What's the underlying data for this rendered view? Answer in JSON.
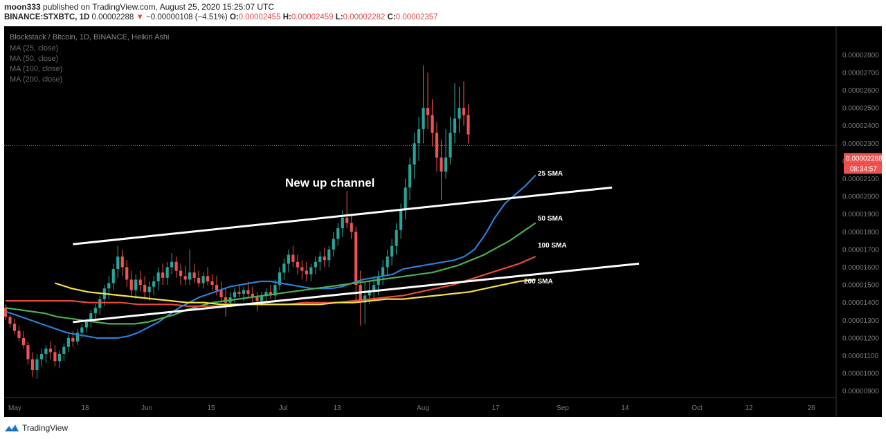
{
  "header": {
    "author": "moon333",
    "published_text": "published on TradingView.com, August 25, 2020 15:25:07 UTC",
    "symbol": "BINANCE:STXBTC, 1D",
    "last": "0.00002288",
    "change_arrow": "▼",
    "change": "−0.00000108 (−4.51%)",
    "o_label": "O:",
    "o_value": "0.00002455",
    "h_label": "H:",
    "h_value": "0.00002459",
    "l_label": "L:",
    "l_value": "0.00002282",
    "c_label": "C:",
    "c_value": "0.00002357"
  },
  "legend": {
    "title": "Blockstack / Bitcoin, 1D, BINANCE, Heikin Ashi",
    "ma": [
      "MA (25, close)",
      "MA (50, close)",
      "MA (100, close)",
      "MA (200, close)"
    ]
  },
  "annotations": {
    "channel": "New up channel",
    "sma25": "25 SMA",
    "sma50": "50 SMA",
    "sma100": "100 SMA",
    "sma200": "200 SMA"
  },
  "price_scale": {
    "last_price": "0.00002288",
    "countdown": "08:34:57"
  },
  "footer": {
    "brand": "TradingView"
  },
  "colors": {
    "background": "#000000",
    "up": "#26a69a",
    "down": "#ef5350",
    "sma25": "#2d7fd6",
    "sma50": "#4caf50",
    "sma100": "#e84a3a",
    "sma200": "#f4e242",
    "trendline": "#ffffff"
  },
  "chart_data": {
    "type": "candlestick",
    "title": "Blockstack / Bitcoin, 1D, BINANCE, Heikin Ashi",
    "y_tick_labels": [
      "0.00000900",
      "0.00001000",
      "0.00001100",
      "0.00001200",
      "0.00001300",
      "0.00001400",
      "0.00001500",
      "0.00001600",
      "0.00001700",
      "0.00001800",
      "0.00001900",
      "0.00002000",
      "0.00002100",
      "0.00002200",
      "0.00002300",
      "0.00002400",
      "0.00002500",
      "0.00002600",
      "0.00002700",
      "0.00002800"
    ],
    "x_tick_labels": [
      "May",
      "18",
      "Jun",
      "15",
      "Jul",
      "13",
      "Aug",
      "17",
      "Sep",
      "14",
      "Oct",
      "12",
      "26"
    ],
    "ylim": [
      8.5e-06,
      2.89e-05
    ],
    "start_date": "2020-05-04",
    "ohlc_heikin_ashi": [
      [
        1.37e-05,
        1.39e-05,
        1.3e-05,
        1.32e-05
      ],
      [
        1.32e-05,
        1.33e-05,
        1.26e-05,
        1.28e-05
      ],
      [
        1.28e-05,
        1.31e-05,
        1.22e-05,
        1.24e-05
      ],
      [
        1.24e-05,
        1.27e-05,
        1.18e-05,
        1.2e-05
      ],
      [
        1.2e-05,
        1.24e-05,
        1.14e-05,
        1.16e-05
      ],
      [
        1.16e-05,
        1.18e-05,
        1.05e-05,
        1.08e-05
      ],
      [
        1.08e-05,
        1.12e-05,
        9.8e-06,
        1.02e-05
      ],
      [
        1.02e-05,
        1.11e-05,
        9.7e-06,
        1.08e-05
      ],
      [
        1.08e-05,
        1.14e-05,
        1.04e-05,
        1.11e-05
      ],
      [
        1.11e-05,
        1.16e-05,
        1.06e-05,
        1.14e-05
      ],
      [
        1.14e-05,
        1.18e-05,
        1.08e-05,
        1.12e-05
      ],
      [
        1.12e-05,
        1.16e-05,
        1.04e-05,
        1.07e-05
      ],
      [
        1.07e-05,
        1.13e-05,
        1.03e-05,
        1.11e-05
      ],
      [
        1.11e-05,
        1.17e-05,
        1.07e-05,
        1.15e-05
      ],
      [
        1.15e-05,
        1.22e-05,
        1.12e-05,
        1.2e-05
      ],
      [
        1.2e-05,
        1.24e-05,
        1.15e-05,
        1.18e-05
      ],
      [
        1.18e-05,
        1.25e-05,
        1.16e-05,
        1.23e-05
      ],
      [
        1.23e-05,
        1.28e-05,
        1.2e-05,
        1.26e-05
      ],
      [
        1.26e-05,
        1.31e-05,
        1.23e-05,
        1.29e-05
      ],
      [
        1.29e-05,
        1.36e-05,
        1.26e-05,
        1.34e-05
      ],
      [
        1.34e-05,
        1.39e-05,
        1.3e-05,
        1.37e-05
      ],
      [
        1.37e-05,
        1.44e-05,
        1.33e-05,
        1.42e-05
      ],
      [
        1.42e-05,
        1.5e-05,
        1.38e-05,
        1.48e-05
      ],
      [
        1.48e-05,
        1.55e-05,
        1.42e-05,
        1.51e-05
      ],
      [
        1.51e-05,
        1.62e-05,
        1.47e-05,
        1.59e-05
      ],
      [
        1.59e-05,
        1.72e-05,
        1.54e-05,
        1.66e-05
      ],
      [
        1.66e-05,
        1.7e-05,
        1.55e-05,
        1.6e-05
      ],
      [
        1.6e-05,
        1.64e-05,
        1.49e-05,
        1.53e-05
      ],
      [
        1.53e-05,
        1.58e-05,
        1.43e-05,
        1.47e-05
      ],
      [
        1.47e-05,
        1.56e-05,
        1.42e-05,
        1.53e-05
      ],
      [
        1.53e-05,
        1.58e-05,
        1.46e-05,
        1.5e-05
      ],
      [
        1.5e-05,
        1.55e-05,
        1.42e-05,
        1.46e-05
      ],
      [
        1.46e-05,
        1.52e-05,
        1.41e-05,
        1.49e-05
      ],
      [
        1.49e-05,
        1.55e-05,
        1.44e-05,
        1.52e-05
      ],
      [
        1.52e-05,
        1.6e-05,
        1.47e-05,
        1.57e-05
      ],
      [
        1.57e-05,
        1.62e-05,
        1.5e-05,
        1.54e-05
      ],
      [
        1.54e-05,
        1.63e-05,
        1.5e-05,
        1.6e-05
      ],
      [
        1.6e-05,
        1.68e-05,
        1.56e-05,
        1.63e-05
      ],
      [
        1.63e-05,
        1.66e-05,
        1.54e-05,
        1.58e-05
      ],
      [
        1.58e-05,
        1.62e-05,
        1.5e-05,
        1.55e-05
      ],
      [
        1.55e-05,
        1.61e-05,
        1.5e-05,
        1.53e-05
      ],
      [
        1.53e-05,
        1.7e-05,
        1.5e-05,
        1.57e-05
      ],
      [
        1.57e-05,
        1.62e-05,
        1.51e-05,
        1.54e-05
      ],
      [
        1.54e-05,
        1.58e-05,
        1.49e-05,
        1.51e-05
      ],
      [
        1.51e-05,
        1.57e-05,
        1.48e-05,
        1.55e-05
      ],
      [
        1.55e-05,
        1.6e-05,
        1.5e-05,
        1.52e-05
      ],
      [
        1.52e-05,
        1.56e-05,
        1.47e-05,
        1.5e-05
      ],
      [
        1.5e-05,
        1.55e-05,
        1.44e-05,
        1.47e-05
      ],
      [
        1.47e-05,
        1.52e-05,
        1.4e-05,
        1.43e-05
      ],
      [
        1.43e-05,
        1.48e-05,
        1.32e-05,
        1.4e-05
      ],
      [
        1.4e-05,
        1.46e-05,
        1.37e-05,
        1.43e-05
      ],
      [
        1.43e-05,
        1.48e-05,
        1.4e-05,
        1.46e-05
      ],
      [
        1.46e-05,
        1.5e-05,
        1.43e-05,
        1.45e-05
      ],
      [
        1.45e-05,
        1.49e-05,
        1.41e-05,
        1.47e-05
      ],
      [
        1.47e-05,
        1.52e-05,
        1.43e-05,
        1.45e-05
      ],
      [
        1.45e-05,
        1.49e-05,
        1.4e-05,
        1.43e-05
      ],
      [
        1.43e-05,
        1.46e-05,
        1.35e-05,
        1.41e-05
      ],
      [
        1.41e-05,
        1.46e-05,
        1.38e-05,
        1.44e-05
      ],
      [
        1.44e-05,
        1.48e-05,
        1.4e-05,
        1.46e-05
      ],
      [
        1.46e-05,
        1.5e-05,
        1.42e-05,
        1.44e-05
      ],
      [
        1.44e-05,
        1.53e-05,
        1.41e-05,
        1.5e-05
      ],
      [
        1.5e-05,
        1.6e-05,
        1.47e-05,
        1.57e-05
      ],
      [
        1.57e-05,
        1.65e-05,
        1.53e-05,
        1.62e-05
      ],
      [
        1.62e-05,
        1.7e-05,
        1.57e-05,
        1.67e-05
      ],
      [
        1.67e-05,
        1.72e-05,
        1.6e-05,
        1.63e-05
      ],
      [
        1.63e-05,
        1.67e-05,
        1.56e-05,
        1.6e-05
      ],
      [
        1.6e-05,
        1.64e-05,
        1.53e-05,
        1.58e-05
      ],
      [
        1.58e-05,
        1.63e-05,
        1.52e-05,
        1.56e-05
      ],
      [
        1.56e-05,
        1.62e-05,
        1.52e-05,
        1.6e-05
      ],
      [
        1.6e-05,
        1.66e-05,
        1.56e-05,
        1.63e-05
      ],
      [
        1.63e-05,
        1.69e-05,
        1.58e-05,
        1.66e-05
      ],
      [
        1.66e-05,
        1.71e-05,
        1.6e-05,
        1.64e-05
      ],
      [
        1.64e-05,
        1.72e-05,
        1.6e-05,
        1.7e-05
      ],
      [
        1.7e-05,
        1.8e-05,
        1.66e-05,
        1.76e-05
      ],
      [
        1.76e-05,
        1.85e-05,
        1.72e-05,
        1.82e-05
      ],
      [
        1.82e-05,
        1.92e-05,
        1.77e-05,
        1.88e-05
      ],
      [
        1.88e-05,
        2.03e-05,
        1.82e-05,
        1.85e-05
      ],
      [
        1.85e-05,
        1.9e-05,
        1.76e-05,
        1.8e-05
      ],
      [
        1.8e-05,
        1.83e-05,
        1.4e-05,
        1.5e-05
      ],
      [
        1.5e-05,
        1.58e-05,
        1.27e-05,
        1.4e-05
      ],
      [
        1.4e-05,
        1.52e-05,
        1.28e-05,
        1.44e-05
      ],
      [
        1.44e-05,
        1.52e-05,
        1.39e-05,
        1.47e-05
      ],
      [
        1.47e-05,
        1.55e-05,
        1.41e-05,
        1.5e-05
      ],
      [
        1.5e-05,
        1.58e-05,
        1.44e-05,
        1.55e-05
      ],
      [
        1.55e-05,
        1.64e-05,
        1.5e-05,
        1.6e-05
      ],
      [
        1.6e-05,
        1.7e-05,
        1.55e-05,
        1.66e-05
      ],
      [
        1.66e-05,
        1.76e-05,
        1.61e-05,
        1.72e-05
      ],
      [
        1.72e-05,
        1.85e-05,
        1.67e-05,
        1.81e-05
      ],
      [
        1.81e-05,
        1.96e-05,
        1.76e-05,
        1.92e-05
      ],
      [
        1.92e-05,
        2.1e-05,
        1.87e-05,
        2.05e-05
      ],
      [
        2.05e-05,
        2.22e-05,
        1.98e-05,
        2.18e-05
      ],
      [
        2.18e-05,
        2.36e-05,
        2.1e-05,
        2.3e-05
      ],
      [
        2.3e-05,
        2.45e-05,
        2.2e-05,
        2.38e-05
      ],
      [
        2.38e-05,
        2.74e-05,
        2.3e-05,
        2.5e-05
      ],
      [
        2.5e-05,
        2.7e-05,
        2.38e-05,
        2.46e-05
      ],
      [
        2.46e-05,
        2.55e-05,
        2.28e-05,
        2.36e-05
      ],
      [
        2.36e-05,
        2.42e-05,
        2.14e-05,
        2.22e-05
      ],
      [
        2.22e-05,
        2.32e-05,
        1.98e-05,
        2.14e-05
      ],
      [
        2.14e-05,
        2.38e-05,
        2.1e-05,
        2.22e-05
      ],
      [
        2.22e-05,
        2.45e-05,
        2.18e-05,
        2.36e-05
      ],
      [
        2.36e-05,
        2.64e-05,
        2.3e-05,
        2.44e-05
      ],
      [
        2.44e-05,
        2.62e-05,
        2.36e-05,
        2.5e-05
      ],
      [
        2.5e-05,
        2.65e-05,
        2.4e-05,
        2.46e-05
      ],
      [
        2.46e-05,
        2.52e-05,
        2.3e-05,
        2.35e-05
      ]
    ],
    "series": [
      {
        "name": "25 SMA",
        "values": [
          1.35e-05,
          1.33e-05,
          1.31e-05,
          1.29e-05,
          1.27e-05,
          1.25e-05,
          1.23e-05,
          1.22e-05,
          1.21e-05,
          1.2e-05,
          1.2e-05,
          1.2e-05,
          1.21e-05,
          1.23e-05,
          1.26e-05,
          1.29e-05,
          1.33e-05,
          1.37e-05,
          1.4e-05,
          1.43e-05,
          1.45e-05,
          1.47e-05,
          1.49e-05,
          1.5e-05,
          1.51e-05,
          1.52e-05,
          1.52e-05,
          1.51e-05,
          1.5e-05,
          1.49e-05,
          1.48e-05,
          1.48e-05,
          1.48e-05,
          1.49e-05,
          1.51e-05,
          1.53e-05,
          1.54e-05,
          1.55e-05,
          1.56e-05,
          1.59e-05,
          1.6e-05,
          1.61e-05,
          1.62e-05,
          1.63e-05,
          1.64e-05,
          1.66e-05,
          1.7e-05,
          1.78e-05,
          1.88e-05,
          1.96e-05,
          2.01e-05,
          2.06e-05,
          2.12e-05
        ]
      },
      {
        "name": "50 SMA",
        "values": [
          1.37e-05,
          1.36e-05,
          1.35e-05,
          1.34e-05,
          1.32e-05,
          1.31e-05,
          1.3e-05,
          1.29e-05,
          1.28e-05,
          1.28e-05,
          1.28e-05,
          1.29e-05,
          1.31e-05,
          1.33e-05,
          1.36e-05,
          1.38e-05,
          1.4e-05,
          1.41e-05,
          1.42e-05,
          1.43e-05,
          1.44e-05,
          1.45e-05,
          1.46e-05,
          1.47e-05,
          1.48e-05,
          1.49e-05,
          1.5e-05,
          1.51e-05,
          1.52e-05,
          1.53e-05,
          1.54e-05,
          1.55e-05,
          1.56e-05,
          1.57e-05,
          1.59e-05,
          1.61e-05,
          1.64e-05,
          1.67e-05,
          1.71e-05,
          1.75e-05,
          1.8e-05,
          1.85e-05
        ]
      },
      {
        "name": "100 SMA",
        "values": [
          1.41e-05,
          1.41e-05,
          1.41e-05,
          1.41e-05,
          1.41e-05,
          1.4e-05,
          1.4e-05,
          1.4e-05,
          1.39e-05,
          1.39e-05,
          1.39e-05,
          1.38e-05,
          1.38e-05,
          1.38e-05,
          1.39e-05,
          1.39e-05,
          1.39e-05,
          1.39e-05,
          1.4e-05,
          1.4e-05,
          1.4e-05,
          1.41e-05,
          1.42e-05,
          1.43e-05,
          1.44e-05,
          1.46e-05,
          1.48e-05,
          1.5e-05,
          1.53e-05,
          1.56e-05,
          1.59e-05,
          1.62e-05,
          1.66e-05
        ]
      },
      {
        "name": "200 SMA",
        "values": [
          1.51e-05,
          1.48e-05,
          1.46e-05,
          1.45e-05,
          1.44e-05,
          1.43e-05,
          1.42e-05,
          1.41e-05,
          1.4e-05,
          1.4e-05,
          1.39e-05,
          1.39e-05,
          1.39e-05,
          1.39e-05,
          1.39e-05,
          1.39e-05,
          1.39e-05,
          1.4e-05,
          1.4e-05,
          1.41e-05,
          1.42e-05,
          1.42e-05,
          1.43e-05,
          1.44e-05,
          1.45e-05,
          1.46e-05,
          1.48e-05,
          1.5e-05,
          1.52e-05,
          1.53e-05
        ]
      }
    ],
    "trendlines": [
      {
        "from": [
          1.73e-05,
          "2020-05-19"
        ],
        "to": [
          2.05e-05,
          "2020-09-16"
        ]
      },
      {
        "from": [
          1.29e-05,
          "2020-05-19"
        ],
        "to": [
          1.62e-05,
          "2020-09-22"
        ]
      }
    ],
    "last_price": 2.288e-05,
    "grid": false,
    "legend_position": "top-left"
  }
}
